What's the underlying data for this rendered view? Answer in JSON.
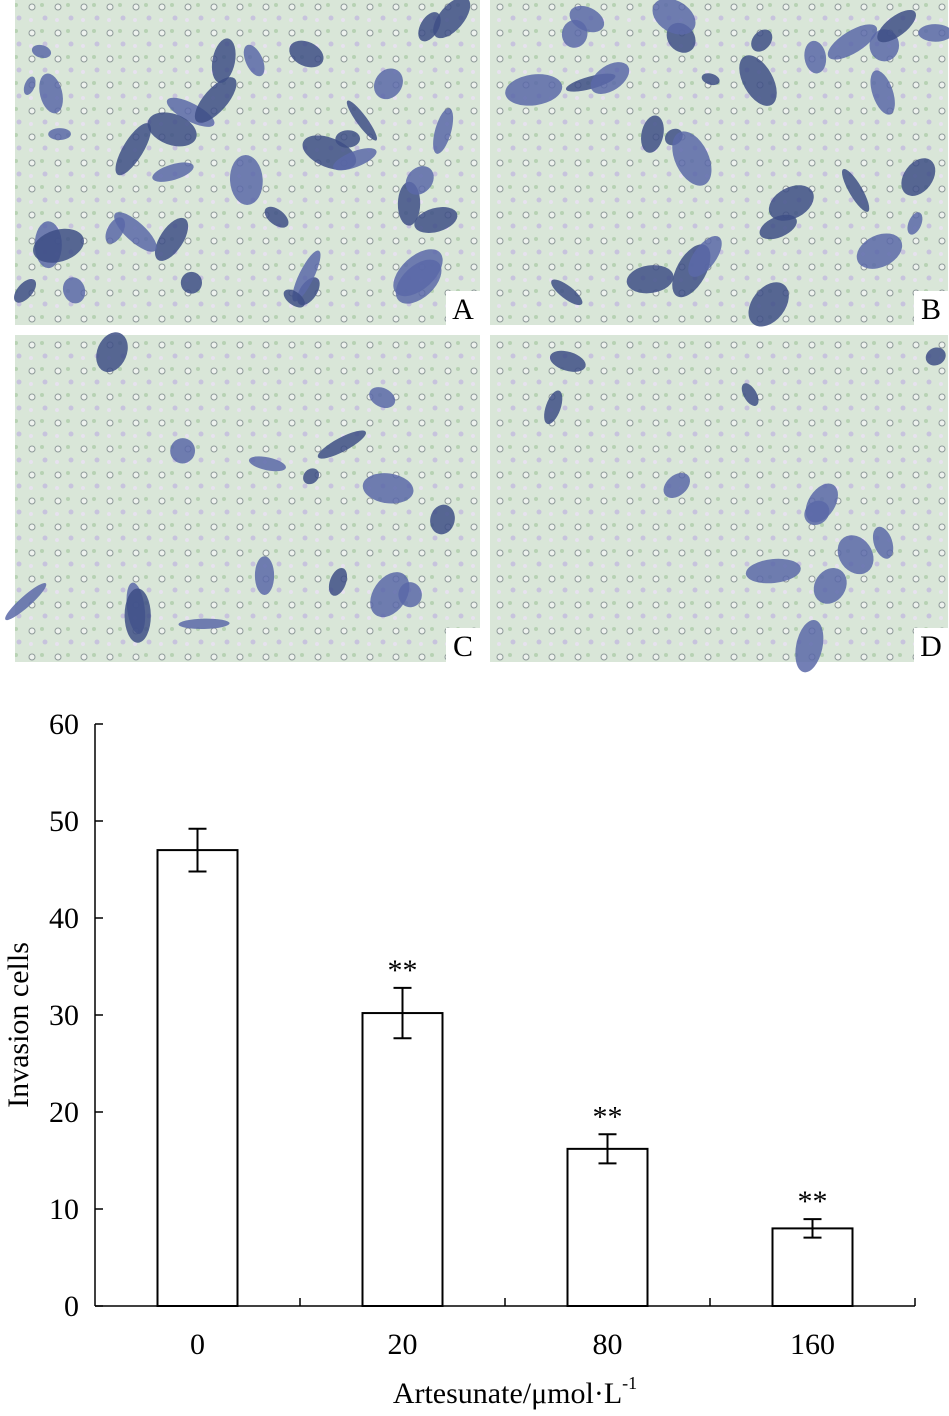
{
  "panel_labels": [
    "A",
    "B",
    "C",
    "D"
  ],
  "chart_data": {
    "type": "bar",
    "categories": [
      "0",
      "20",
      "80",
      "160"
    ],
    "values": [
      47,
      30.2,
      16.2,
      8
    ],
    "errors": [
      2.2,
      2.6,
      1.5,
      0.95
    ],
    "annotations": [
      null,
      "**",
      "**",
      "**"
    ],
    "ylabel": "Invasion cells",
    "xlabel": {
      "text": "Artesunate/μmol·L",
      "superscript": "-1"
    },
    "ylim": [
      0,
      60
    ],
    "yticks": [
      0,
      10,
      20,
      30,
      40,
      50,
      60
    ],
    "color": "#ffffff",
    "edgecolor": "#000000"
  }
}
